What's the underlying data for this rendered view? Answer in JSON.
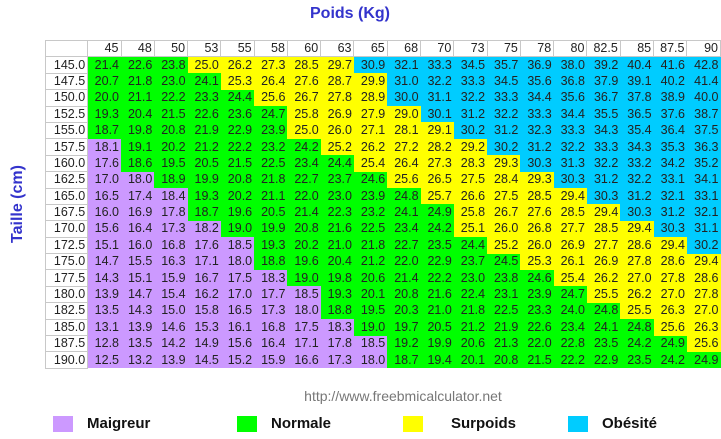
{
  "chart_data": {
    "type": "table",
    "title": "Poids (Kg)",
    "ylabel": "Taille (cm)",
    "columns": [
      "45",
      "48",
      "50",
      "53",
      "55",
      "58",
      "60",
      "63",
      "65",
      "68",
      "70",
      "73",
      "75",
      "78",
      "80",
      "82.5",
      "85",
      "87.5",
      "90"
    ],
    "rows": [
      {
        "label": "145.0",
        "values": [
          21.4,
          22.6,
          23.8,
          25.0,
          26.2,
          27.3,
          28.5,
          29.7,
          30.9,
          32.1,
          33.3,
          34.5,
          35.7,
          36.9,
          38.0,
          39.2,
          40.4,
          41.6,
          42.8
        ]
      },
      {
        "label": "147.5",
        "values": [
          20.7,
          21.8,
          23.0,
          24.1,
          25.3,
          26.4,
          27.6,
          28.7,
          29.9,
          31.0,
          32.2,
          33.3,
          34.5,
          35.6,
          36.8,
          37.9,
          39.1,
          40.2,
          41.4
        ]
      },
      {
        "label": "150.0",
        "values": [
          20.0,
          21.1,
          22.2,
          23.3,
          24.4,
          25.6,
          26.7,
          27.8,
          28.9,
          30.0,
          31.1,
          32.2,
          33.3,
          34.4,
          35.6,
          36.7,
          37.8,
          38.9,
          40.0
        ]
      },
      {
        "label": "152.5",
        "values": [
          19.3,
          20.4,
          21.5,
          22.6,
          23.6,
          24.7,
          25.8,
          26.9,
          27.9,
          29.0,
          30.1,
          31.2,
          32.2,
          33.3,
          34.4,
          35.5,
          36.5,
          37.6,
          38.7
        ]
      },
      {
        "label": "155.0",
        "values": [
          18.7,
          19.8,
          20.8,
          21.9,
          22.9,
          23.9,
          25.0,
          26.0,
          27.1,
          28.1,
          29.1,
          30.2,
          31.2,
          32.3,
          33.3,
          34.3,
          35.4,
          36.4,
          37.5
        ]
      },
      {
        "label": "157.5",
        "values": [
          18.1,
          19.1,
          20.2,
          21.2,
          22.2,
          23.2,
          24.2,
          25.2,
          26.2,
          27.2,
          28.2,
          29.2,
          30.2,
          31.2,
          32.2,
          33.3,
          34.3,
          35.3,
          36.3
        ]
      },
      {
        "label": "160.0",
        "values": [
          17.6,
          18.6,
          19.5,
          20.5,
          21.5,
          22.5,
          23.4,
          24.4,
          25.4,
          26.4,
          27.3,
          28.3,
          29.3,
          30.3,
          31.3,
          32.2,
          33.2,
          34.2,
          35.2
        ]
      },
      {
        "label": "162.5",
        "values": [
          17.0,
          18.0,
          18.9,
          19.9,
          20.8,
          21.8,
          22.7,
          23.7,
          24.6,
          25.6,
          26.5,
          27.5,
          28.4,
          29.3,
          30.3,
          31.2,
          32.2,
          33.1,
          34.1
        ]
      },
      {
        "label": "165.0",
        "values": [
          16.5,
          17.4,
          18.4,
          19.3,
          20.2,
          21.1,
          22.0,
          23.0,
          23.9,
          24.8,
          25.7,
          26.6,
          27.5,
          28.5,
          29.4,
          30.3,
          31.2,
          32.1,
          33.1
        ]
      },
      {
        "label": "167.5",
        "values": [
          16.0,
          16.9,
          17.8,
          18.7,
          19.6,
          20.5,
          21.4,
          22.3,
          23.2,
          24.1,
          24.9,
          25.8,
          26.7,
          27.6,
          28.5,
          29.4,
          30.3,
          31.2,
          32.1
        ]
      },
      {
        "label": "170.0",
        "values": [
          15.6,
          16.4,
          17.3,
          18.2,
          19.0,
          19.9,
          20.8,
          21.6,
          22.5,
          23.4,
          24.2,
          25.1,
          26.0,
          26.8,
          27.7,
          28.5,
          29.4,
          30.3,
          31.1
        ]
      },
      {
        "label": "172.5",
        "values": [
          15.1,
          16.0,
          16.8,
          17.6,
          18.5,
          19.3,
          20.2,
          21.0,
          21.8,
          22.7,
          23.5,
          24.4,
          25.2,
          26.0,
          26.9,
          27.7,
          28.6,
          29.4,
          30.2
        ]
      },
      {
        "label": "175.0",
        "values": [
          14.7,
          15.5,
          16.3,
          17.1,
          18.0,
          18.8,
          19.6,
          20.4,
          21.2,
          22.0,
          22.9,
          23.7,
          24.5,
          25.3,
          26.1,
          26.9,
          27.8,
          28.6,
          29.4
        ]
      },
      {
        "label": "177.5",
        "values": [
          14.3,
          15.1,
          15.9,
          16.7,
          17.5,
          18.3,
          19.0,
          19.8,
          20.6,
          21.4,
          22.2,
          23.0,
          23.8,
          24.6,
          25.4,
          26.2,
          27.0,
          27.8,
          28.6
        ]
      },
      {
        "label": "180.0",
        "values": [
          13.9,
          14.7,
          15.4,
          16.2,
          17.0,
          17.7,
          18.5,
          19.3,
          20.1,
          20.8,
          21.6,
          22.4,
          23.1,
          23.9,
          24.7,
          25.5,
          26.2,
          27.0,
          27.8
        ]
      },
      {
        "label": "182.5",
        "values": [
          13.5,
          14.3,
          15.0,
          15.8,
          16.5,
          17.3,
          18.0,
          18.8,
          19.5,
          20.3,
          21.0,
          21.8,
          22.5,
          23.3,
          24.0,
          24.8,
          25.5,
          26.3,
          27.0
        ]
      },
      {
        "label": "185.0",
        "values": [
          13.1,
          13.9,
          14.6,
          15.3,
          16.1,
          16.8,
          17.5,
          18.3,
          19.0,
          19.7,
          20.5,
          21.2,
          21.9,
          22.6,
          23.4,
          24.1,
          24.8,
          25.6,
          26.3
        ]
      },
      {
        "label": "187.5",
        "values": [
          12.8,
          13.5,
          14.2,
          14.9,
          15.6,
          16.4,
          17.1,
          17.8,
          18.5,
          19.2,
          19.9,
          20.6,
          21.3,
          22.0,
          22.8,
          23.5,
          24.2,
          24.9,
          25.6
        ]
      },
      {
        "label": "190.0",
        "values": [
          12.5,
          13.2,
          13.9,
          14.5,
          15.2,
          15.9,
          16.6,
          17.3,
          18.0,
          18.7,
          19.4,
          20.1,
          20.8,
          21.5,
          22.2,
          22.9,
          23.5,
          24.2,
          24.9
        ]
      }
    ],
    "categories": [
      {
        "name": "Maigreur",
        "color": "#cc99ff",
        "max": 18.5
      },
      {
        "name": "Normale",
        "color": "#00ff00",
        "max": 24.9
      },
      {
        "name": "Surpoids",
        "color": "#ffff00",
        "max": 29.9
      },
      {
        "name": "Obésité",
        "color": "#00ccff",
        "max": null
      }
    ],
    "legend_position": "bottom"
  },
  "source_url": "http://www.freebmicalculator.net"
}
